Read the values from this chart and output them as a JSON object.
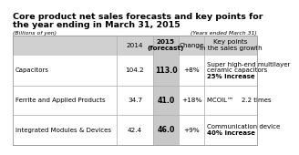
{
  "title_line1": "Core product net sales forecasts and key points for",
  "title_line2": "the year ending in March 31, 2015",
  "subtitle_left": "(Billions of yen)",
  "subtitle_right": "(Years ended March 31)",
  "rows": [
    {
      "label": "Capacitors",
      "val2014": "104.2",
      "val2015": "113.0",
      "change": "+8%",
      "key_lines": [
        "Super high-end multilayer",
        "ceramic capacitors",
        "25% increase"
      ],
      "key_bold": [
        false,
        false,
        true
      ]
    },
    {
      "label": "Ferrite and Applied Products",
      "val2014": "34.7",
      "val2015": "41.0",
      "change": "+18%",
      "key_lines": [
        "MCOIL™    2.2 times"
      ],
      "key_bold": [
        false
      ]
    },
    {
      "label": "Integrated Modules & Devices",
      "val2014": "42.4",
      "val2015": "46.0",
      "change": "+9%",
      "key_lines": [
        "Communication device",
        "40% increase"
      ],
      "key_bold": [
        false,
        true
      ]
    }
  ],
  "header_bg": "#d0d0d0",
  "forecast_col_bg": "#c8c8c8",
  "row_divider": "#bbbbbb",
  "title_fontsize": 6.8,
  "subtitle_fontsize": 4.4,
  "header_fontsize": 5.2,
  "cell_fontsize": 5.2,
  "label_fontsize": 5.0,
  "key_fontsize": 5.0
}
